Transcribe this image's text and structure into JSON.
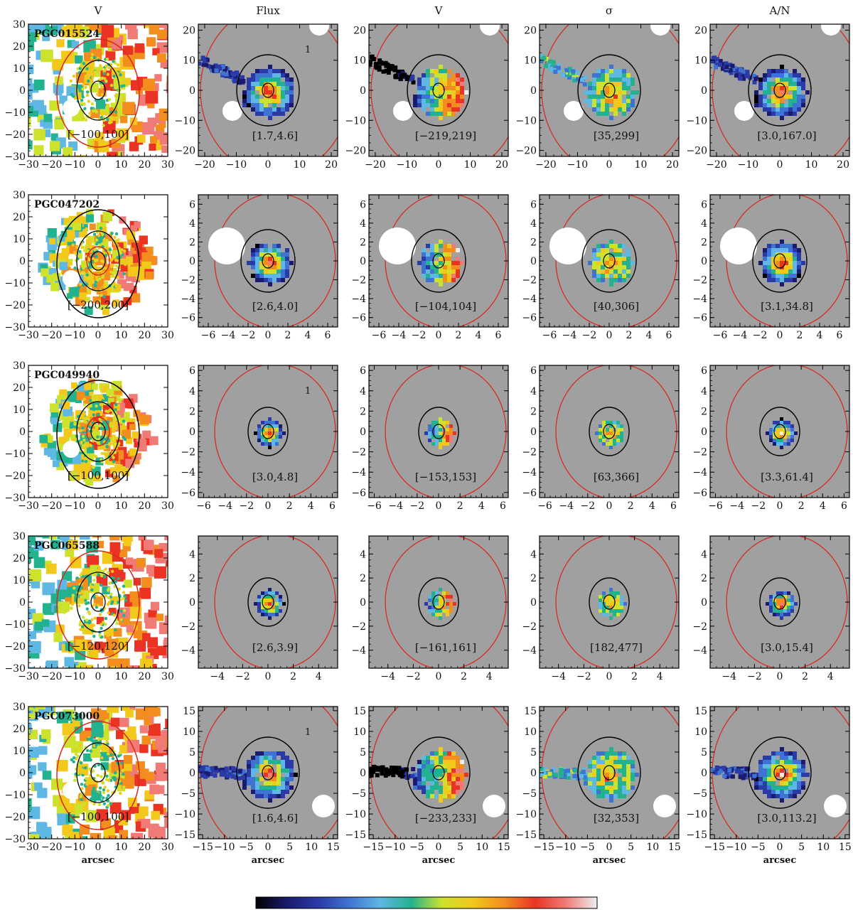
{
  "columns": [
    "V",
    "Flux",
    "V",
    "σ",
    "A/N"
  ],
  "xlabel": "arcsec",
  "colormap": [
    "#000000",
    "#1a1a6e",
    "#2a3aa8",
    "#3f73d3",
    "#5fb7e3",
    "#23b28f",
    "#cde22c",
    "#f2c81a",
    "#f28d1e",
    "#ea3323",
    "#f07b76",
    "#eeeeee"
  ],
  "colors": {
    "background_panel": "#a0a0a0",
    "contour_black": "#000000",
    "contour_red": "#d62b20"
  },
  "chart_data": {
    "type": "heatmap",
    "rows": [
      {
        "galaxy": "PGC015524",
        "large_field": {
          "title": "V",
          "range_label": "[−100,100]",
          "lim": [
            -30,
            30
          ],
          "ticks": [
            -30,
            -20,
            -10,
            0,
            10,
            20,
            30
          ],
          "tick_labels_x": [
            "−30",
            "−20",
            "−10",
            "0",
            "10",
            "20",
            "30"
          ],
          "tick_labels_y": [
            "−30",
            "−20",
            "−10",
            "0",
            "10",
            "20",
            "30"
          ],
          "filled": true
        },
        "lim": [
          -22,
          22
        ],
        "ticks": [
          -20,
          -10,
          0,
          10,
          20
        ],
        "tick_labels": [
          "−20",
          "−10",
          "0",
          "10",
          "20"
        ],
        "blob": {
          "size": "large",
          "shape": "tail-left"
        },
        "panels": [
          {
            "column": "Flux",
            "range_label": "[1.7,4.6]",
            "marker": "1"
          },
          {
            "column": "V",
            "range_label": "[−219,219]"
          },
          {
            "column": "σ",
            "range_label": "[35,299]"
          },
          {
            "column": "A/N",
            "range_label": "[3.0,167.0]"
          }
        ]
      },
      {
        "galaxy": "PGC047202",
        "large_field": {
          "title": "",
          "range_label": "[−200,200]",
          "lim": [
            -30,
            30
          ],
          "ticks": [
            -30,
            -20,
            -10,
            0,
            10,
            20,
            30
          ],
          "tick_labels_x": [
            "−30",
            "−20",
            "−10",
            "0",
            "10",
            "20",
            "30"
          ],
          "tick_labels_y": [
            "−30",
            "−20",
            "−10",
            "0",
            "10",
            "20",
            "30"
          ],
          "filled": false
        },
        "lim": [
          -7,
          7
        ],
        "ticks": [
          -6,
          -4,
          -2,
          0,
          2,
          4,
          6
        ],
        "tick_labels": [
          "−6",
          "−4",
          "−2",
          "0",
          "2",
          "4",
          "6"
        ],
        "blob": {
          "size": "medium",
          "shape": "irregular"
        },
        "panels": [
          {
            "column": "Flux",
            "range_label": "[2.6,4.0]"
          },
          {
            "column": "V",
            "range_label": "[−104,104]"
          },
          {
            "column": "σ",
            "range_label": "[40,306]"
          },
          {
            "column": "A/N",
            "range_label": "[3.1,34.8]"
          }
        ]
      },
      {
        "galaxy": "PGC049940",
        "large_field": {
          "title": "",
          "range_label": "[−100,100]",
          "lim": [
            -30,
            30
          ],
          "ticks": [
            -30,
            -20,
            -10,
            0,
            10,
            20,
            30
          ],
          "tick_labels_x": [
            "−30",
            "−20",
            "−10",
            "0",
            "10",
            "20",
            "30"
          ],
          "tick_labels_y": [
            "−30",
            "−20",
            "−10",
            "0",
            "10",
            "20",
            "30"
          ],
          "filled": false
        },
        "lim": [
          -6.5,
          6.5
        ],
        "ticks": [
          -6,
          -4,
          -2,
          0,
          2,
          4,
          6
        ],
        "tick_labels": [
          "−6",
          "−4",
          "−2",
          "0",
          "2",
          "4",
          "6"
        ],
        "blob": {
          "size": "small",
          "shape": "round"
        },
        "panels": [
          {
            "column": "Flux",
            "range_label": "[3.0,4.8]",
            "marker": "1"
          },
          {
            "column": "V",
            "range_label": "[−153,153]"
          },
          {
            "column": "σ",
            "range_label": "[63,366]"
          },
          {
            "column": "A/N",
            "range_label": "[3.3,61.4]"
          }
        ]
      },
      {
        "galaxy": "PGC065588",
        "large_field": {
          "title": "",
          "range_label": "[−120,120]",
          "lim": [
            -30,
            30
          ],
          "ticks": [
            -30,
            -20,
            -10,
            0,
            10,
            20,
            30
          ],
          "tick_labels_x": [
            "−30",
            "−20",
            "−10",
            "0",
            "10",
            "20",
            "30"
          ],
          "tick_labels_y": [
            "−30",
            "−20",
            "−10",
            "0",
            "10",
            "20",
            "30"
          ],
          "filled": true
        },
        "lim": [
          -5.5,
          5.5
        ],
        "ticks": [
          -4,
          -2,
          0,
          2,
          4
        ],
        "tick_labels": [
          "−4",
          "−2",
          "0",
          "2",
          "4"
        ],
        "blob": {
          "size": "small",
          "shape": "round"
        },
        "panels": [
          {
            "column": "Flux",
            "range_label": "[2.6,3.9]"
          },
          {
            "column": "V",
            "range_label": "[−161,161]"
          },
          {
            "column": "σ",
            "range_label": "[182,477]"
          },
          {
            "column": "A/N",
            "range_label": "[3.0,15.4]"
          }
        ]
      },
      {
        "galaxy": "PGC073000",
        "large_field": {
          "title": "",
          "range_label": "[−100,100]",
          "lim": [
            -30,
            30
          ],
          "ticks": [
            -30,
            -20,
            -10,
            0,
            10,
            20,
            30
          ],
          "tick_labels_x": [
            "−30",
            "−20",
            "−10",
            "0",
            "10",
            "20",
            "30"
          ],
          "tick_labels_y": [
            "−30",
            "−20",
            "−10",
            "0",
            "10",
            "20",
            "30"
          ],
          "filled": true
        },
        "lim": [
          -16,
          16
        ],
        "ticks": [
          -15,
          -10,
          -5,
          0,
          5,
          10,
          15
        ],
        "tick_labels": [
          "−15",
          "−10",
          "−5",
          "0",
          "5",
          "10",
          "15"
        ],
        "blob": {
          "size": "large",
          "shape": "tail-left"
        },
        "panels": [
          {
            "column": "Flux",
            "range_label": "[1.6,4.6]",
            "marker": "1"
          },
          {
            "column": "V",
            "range_label": "[−233,233]"
          },
          {
            "column": "σ",
            "range_label": "[32,353]"
          },
          {
            "column": "A/N",
            "range_label": "[3.0,113.2]"
          }
        ]
      }
    ]
  }
}
